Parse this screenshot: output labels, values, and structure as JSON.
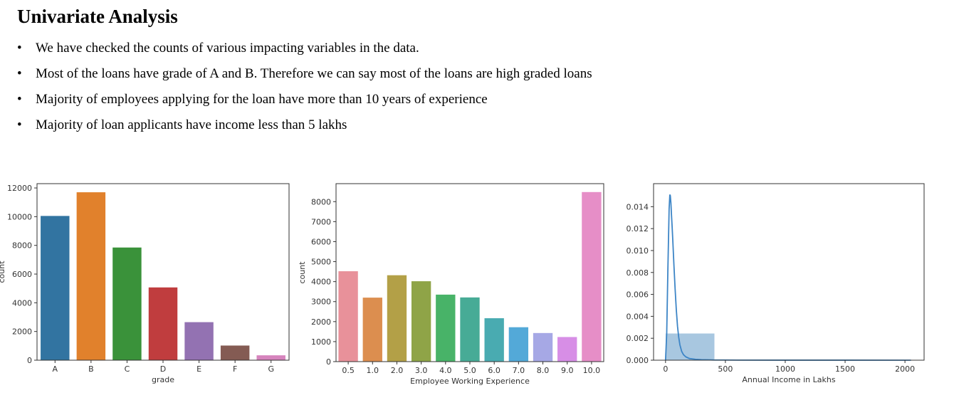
{
  "slide": {
    "title": "Univariate Analysis",
    "bullets": [
      "We have checked the counts of various impacting variables in the data.",
      "Most of the loans have grade of A and B. Therefore we can say most of the loans are high graded loans",
      "Majority of employees applying for the loan have more than 10 years of experience",
      "Majority of loan applicants have income less than 5 lakhs"
    ],
    "bullet_glyph": "•"
  },
  "chart_data": [
    {
      "type": "bar",
      "categories": [
        "A",
        "B",
        "C",
        "D",
        "E",
        "F",
        "G"
      ],
      "values": [
        10050,
        11700,
        7850,
        5070,
        2650,
        1020,
        340
      ],
      "colors": [
        "#3274a1",
        "#e1812c",
        "#3a923a",
        "#c03d3e",
        "#9372b2",
        "#845b53",
        "#d684bd"
      ],
      "xlabel": "grade",
      "ylabel": "count",
      "ylim": [
        0,
        12300
      ],
      "yticks": [
        0,
        2000,
        4000,
        6000,
        8000,
        10000,
        12000
      ]
    },
    {
      "type": "bar",
      "categories": [
        "0.5",
        "1.0",
        "2.0",
        "3.0",
        "4.0",
        "5.0",
        "6.0",
        "7.0",
        "8.0",
        "9.0",
        "10.0"
      ],
      "values": [
        4520,
        3200,
        4320,
        4020,
        3350,
        3210,
        2170,
        1720,
        1430,
        1230,
        8480
      ],
      "colors": [
        "#e8919a",
        "#dc8e4f",
        "#b3a047",
        "#8fa447",
        "#48b368",
        "#47ab96",
        "#49abb1",
        "#53a9d8",
        "#a6a8e5",
        "#d78ee6",
        "#e68ec7"
      ],
      "xlabel": "Employee Working Experience",
      "ylabel": "count",
      "ylim": [
        0,
        8900
      ],
      "yticks": [
        0,
        1000,
        2000,
        3000,
        4000,
        5000,
        6000,
        7000,
        8000
      ]
    },
    {
      "type": "area",
      "xlabel": "Annual Income in Lakhs",
      "ylabel": "",
      "xlim": [
        -100,
        2160
      ],
      "ylim": [
        0,
        0.0161
      ],
      "xticks": [
        0,
        500,
        1000,
        1500,
        2000
      ],
      "yticks": [
        "0.000",
        "0.002",
        "0.004",
        "0.006",
        "0.008",
        "0.010",
        "0.012",
        "0.014"
      ],
      "histogram": {
        "bins": [
          {
            "x0": 0,
            "x1": 410,
            "density": 0.00245
          },
          {
            "x0": 410,
            "x1": 820,
            "density": 2e-05
          },
          {
            "x0": 820,
            "x1": 1230,
            "density": 5e-06
          },
          {
            "x0": 1230,
            "x1": 1640,
            "density": 2e-06
          },
          {
            "x0": 1640,
            "x1": 2050,
            "density": 2e-06
          }
        ],
        "color": "#a8c7e0"
      },
      "kde": {
        "color": "#3d85c6",
        "x": [
          0,
          10,
          20,
          30,
          36,
          40,
          45,
          50,
          55,
          60,
          70,
          80,
          90,
          100,
          110,
          120,
          135,
          150,
          170,
          200,
          250,
          300,
          400,
          600,
          1000,
          1500,
          2050
        ],
        "y": [
          0,
          0.0025,
          0.0085,
          0.0138,
          0.0151,
          0.015,
          0.0143,
          0.0132,
          0.0122,
          0.0111,
          0.0087,
          0.0065,
          0.0046,
          0.0031,
          0.0021,
          0.0014,
          0.0008,
          0.0005,
          0.0003,
          0.00015,
          8e-05,
          5e-05,
          2e-05,
          1e-05,
          5e-06,
          3e-06,
          2e-06
        ]
      }
    }
  ]
}
